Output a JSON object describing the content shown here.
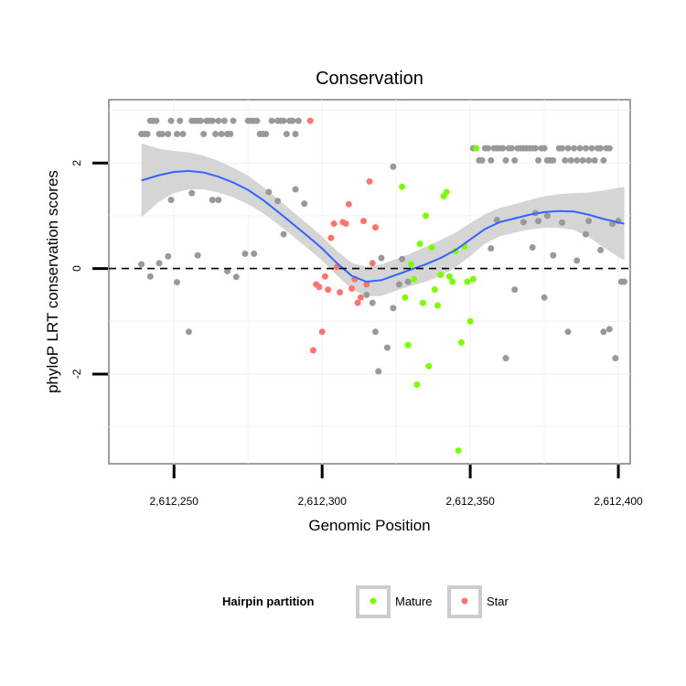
{
  "chart_data": {
    "type": "scatter",
    "title": "Conservation",
    "xlabel": "Genomic Position",
    "ylabel": "phyloP LRT conservation scores",
    "xlim": [
      2612228,
      2612404
    ],
    "ylim": [
      -3.7,
      3.2
    ],
    "x_ticks": [
      2612250,
      2612300,
      2612350,
      2612400
    ],
    "x_tick_labels": [
      "2,612,250",
      "2,612,300",
      "2,612,350",
      "2,612,400"
    ],
    "y_ticks": [
      -2,
      0,
      2
    ],
    "y_tick_labels": [
      "-2",
      "0",
      "2"
    ],
    "reference_line": {
      "y": 0,
      "style": "dashed"
    },
    "legend": {
      "title": "Hairpin partition",
      "position": "bottom",
      "entries": [
        {
          "label": "Mature",
          "color": "#7CFC00"
        },
        {
          "label": "Star",
          "color": "#F8766D"
        }
      ]
    },
    "colors": {
      "other": "#999999",
      "mature": "#7CFC00",
      "star": "#F8766D",
      "smooth_line": "#3366FF",
      "ribbon": "#D3D3D3"
    },
    "smooth": {
      "x": [
        2612239,
        2612245,
        2612250,
        2612255,
        2612260,
        2612265,
        2612270,
        2612275,
        2612280,
        2612285,
        2612290,
        2612295,
        2612300,
        2612305,
        2612310,
        2612315,
        2612320,
        2612325,
        2612330,
        2612335,
        2612340,
        2612345,
        2612350,
        2612355,
        2612360,
        2612365,
        2612370,
        2612375,
        2612380,
        2612385,
        2612390,
        2612395,
        2612402
      ],
      "y": [
        1.67,
        1.77,
        1.83,
        1.85,
        1.82,
        1.74,
        1.63,
        1.49,
        1.3,
        1.08,
        0.85,
        0.62,
        0.38,
        0.1,
        -0.14,
        -0.25,
        -0.22,
        -0.12,
        -0.02,
        0.08,
        0.2,
        0.35,
        0.55,
        0.75,
        0.88,
        0.95,
        1.02,
        1.07,
        1.09,
        1.08,
        1.02,
        0.94,
        0.85
      ],
      "lower": [
        0.97,
        1.27,
        1.43,
        1.5,
        1.5,
        1.44,
        1.35,
        1.22,
        1.05,
        0.84,
        0.62,
        0.39,
        0.15,
        -0.13,
        -0.39,
        -0.53,
        -0.52,
        -0.42,
        -0.33,
        -0.25,
        -0.14,
        0.02,
        0.24,
        0.47,
        0.61,
        0.68,
        0.74,
        0.77,
        0.77,
        0.73,
        0.6,
        0.4,
        0.15
      ],
      "upper": [
        2.37,
        2.27,
        2.23,
        2.2,
        2.14,
        2.04,
        1.91,
        1.76,
        1.55,
        1.32,
        1.08,
        0.85,
        0.61,
        0.33,
        0.11,
        0.03,
        0.08,
        0.18,
        0.29,
        0.41,
        0.54,
        0.68,
        0.86,
        1.03,
        1.15,
        1.22,
        1.3,
        1.37,
        1.41,
        1.43,
        1.44,
        1.48,
        1.55
      ]
    },
    "series": [
      {
        "name": "Other",
        "points": [
          [
            2612239,
            2.55
          ],
          [
            2612240,
            2.55
          ],
          [
            2612241,
            2.55
          ],
          [
            2612242,
            2.8
          ],
          [
            2612243,
            2.8
          ],
          [
            2612244,
            2.8
          ],
          [
            2612245,
            2.55
          ],
          [
            2612246,
            2.55
          ],
          [
            2612248,
            2.55
          ],
          [
            2612249,
            2.8
          ],
          [
            2612251,
            2.55
          ],
          [
            2612252,
            2.8
          ],
          [
            2612253,
            2.55
          ],
          [
            2612256,
            2.8
          ],
          [
            2612257,
            2.8
          ],
          [
            2612258,
            2.8
          ],
          [
            2612259,
            2.8
          ],
          [
            2612260,
            2.55
          ],
          [
            2612261,
            2.8
          ],
          [
            2612262,
            2.8
          ],
          [
            2612263,
            2.8
          ],
          [
            2612264,
            2.55
          ],
          [
            2612265,
            2.8
          ],
          [
            2612266,
            2.55
          ],
          [
            2612267,
            2.8
          ],
          [
            2612268,
            2.55
          ],
          [
            2612269,
            2.55
          ],
          [
            2612270,
            2.8
          ],
          [
            2612275,
            2.8
          ],
          [
            2612276,
            2.8
          ],
          [
            2612277,
            2.8
          ],
          [
            2612278,
            2.8
          ],
          [
            2612279,
            2.55
          ],
          [
            2612280,
            2.55
          ],
          [
            2612281,
            2.55
          ],
          [
            2612283,
            2.8
          ],
          [
            2612285,
            2.8
          ],
          [
            2612286,
            2.8
          ],
          [
            2612287,
            2.8
          ],
          [
            2612288,
            2.55
          ],
          [
            2612289,
            2.8
          ],
          [
            2612290,
            2.8
          ],
          [
            2612291,
            2.55
          ],
          [
            2612292,
            2.8
          ],
          [
            2612239,
            0.08
          ],
          [
            2612242,
            -0.15
          ],
          [
            2612245,
            0.1
          ],
          [
            2612248,
            0.23
          ],
          [
            2612249,
            1.3
          ],
          [
            2612251,
            -0.26
          ],
          [
            2612255,
            -1.2
          ],
          [
            2612256,
            1.43
          ],
          [
            2612258,
            0.25
          ],
          [
            2612263,
            1.3
          ],
          [
            2612265,
            1.3
          ],
          [
            2612268,
            -0.05
          ],
          [
            2612271,
            -0.16
          ],
          [
            2612274,
            0.28
          ],
          [
            2612277,
            0.28
          ],
          [
            2612282,
            1.45
          ],
          [
            2612285,
            1.28
          ],
          [
            2612287,
            0.65
          ],
          [
            2612291,
            1.5
          ],
          [
            2612294,
            1.23
          ],
          [
            2612315,
            -0.5
          ],
          [
            2612317,
            -0.65
          ],
          [
            2612318,
            -1.2
          ],
          [
            2612319,
            -1.95
          ],
          [
            2612320,
            0.2
          ],
          [
            2612322,
            -1.5
          ],
          [
            2612324,
            -0.75
          ],
          [
            2612324,
            1.93
          ],
          [
            2612326,
            -0.3
          ],
          [
            2612327,
            0.18
          ],
          [
            2612329,
            -0.25
          ],
          [
            2612351,
            2.28
          ],
          [
            2612352,
            2.28
          ],
          [
            2612353,
            2.05
          ],
          [
            2612354,
            2.05
          ],
          [
            2612355,
            2.28
          ],
          [
            2612356,
            2.28
          ],
          [
            2612357,
            2.05
          ],
          [
            2612358,
            2.28
          ],
          [
            2612359,
            2.28
          ],
          [
            2612360,
            2.28
          ],
          [
            2612361,
            2.28
          ],
          [
            2612362,
            2.05
          ],
          [
            2612363,
            2.28
          ],
          [
            2612364,
            2.28
          ],
          [
            2612365,
            2.05
          ],
          [
            2612366,
            2.28
          ],
          [
            2612367,
            2.28
          ],
          [
            2612368,
            2.28
          ],
          [
            2612369,
            2.28
          ],
          [
            2612370,
            2.28
          ],
          [
            2612371,
            2.28
          ],
          [
            2612372,
            2.28
          ],
          [
            2612373,
            2.05
          ],
          [
            2612374,
            2.28
          ],
          [
            2612375,
            2.28
          ],
          [
            2612376,
            2.05
          ],
          [
            2612377,
            2.05
          ],
          [
            2612378,
            2.05
          ],
          [
            2612380,
            2.28
          ],
          [
            2612381,
            2.28
          ],
          [
            2612382,
            2.05
          ],
          [
            2612383,
            2.28
          ],
          [
            2612384,
            2.05
          ],
          [
            2612385,
            2.28
          ],
          [
            2612386,
            2.05
          ],
          [
            2612387,
            2.28
          ],
          [
            2612388,
            2.05
          ],
          [
            2612389,
            2.28
          ],
          [
            2612390,
            2.05
          ],
          [
            2612391,
            2.28
          ],
          [
            2612392,
            2.05
          ],
          [
            2612393,
            2.28
          ],
          [
            2612394,
            2.28
          ],
          [
            2612395,
            2.05
          ],
          [
            2612396,
            2.28
          ],
          [
            2612397,
            2.28
          ],
          [
            2612357,
            0.38
          ],
          [
            2612359,
            0.92
          ],
          [
            2612362,
            -1.7
          ],
          [
            2612365,
            -0.4
          ],
          [
            2612368,
            0.88
          ],
          [
            2612371,
            0.4
          ],
          [
            2612372,
            1.05
          ],
          [
            2612373,
            0.9
          ],
          [
            2612375,
            -0.55
          ],
          [
            2612376,
            1.0
          ],
          [
            2612378,
            0.25
          ],
          [
            2612381,
            0.87
          ],
          [
            2612383,
            -1.2
          ],
          [
            2612386,
            0.15
          ],
          [
            2612389,
            0.65
          ],
          [
            2612390,
            0.9
          ],
          [
            2612394,
            0.35
          ],
          [
            2612395,
            -1.2
          ],
          [
            2612397,
            -1.15
          ],
          [
            2612398,
            0.85
          ],
          [
            2612399,
            -1.7
          ],
          [
            2612400,
            0.9
          ],
          [
            2612401,
            -0.25
          ],
          [
            2612402,
            -0.25
          ]
        ]
      },
      {
        "name": "Mature",
        "points": [
          [
            2612327,
            1.55
          ],
          [
            2612328,
            -0.55
          ],
          [
            2612329,
            -1.45
          ],
          [
            2612330,
            0.08
          ],
          [
            2612331,
            -0.2
          ],
          [
            2612332,
            -2.2
          ],
          [
            2612333,
            0.47
          ],
          [
            2612334,
            -0.65
          ],
          [
            2612335,
            1.0
          ],
          [
            2612336,
            -1.85
          ],
          [
            2612337,
            0.4
          ],
          [
            2612338,
            -0.4
          ],
          [
            2612339,
            -0.7
          ],
          [
            2612340,
            -0.12
          ],
          [
            2612341,
            1.37
          ],
          [
            2612342,
            1.45
          ],
          [
            2612343,
            -0.15
          ],
          [
            2612344,
            -0.25
          ],
          [
            2612345,
            0.33
          ],
          [
            2612346,
            -3.45
          ],
          [
            2612347,
            -1.4
          ],
          [
            2612348,
            0.42
          ],
          [
            2612349,
            -0.25
          ],
          [
            2612350,
            -1.0
          ],
          [
            2612351,
            -0.2
          ],
          [
            2612352,
            2.28
          ]
        ]
      },
      {
        "name": "Star",
        "points": [
          [
            2612296,
            2.8
          ],
          [
            2612297,
            -1.55
          ],
          [
            2612298,
            -0.3
          ],
          [
            2612299,
            -0.35
          ],
          [
            2612300,
            -1.2
          ],
          [
            2612301,
            -0.15
          ],
          [
            2612302,
            -0.4
          ],
          [
            2612303,
            0.58
          ],
          [
            2612304,
            0.85
          ],
          [
            2612305,
            0.03
          ],
          [
            2612306,
            -0.45
          ],
          [
            2612307,
            0.88
          ],
          [
            2612308,
            0.85
          ],
          [
            2612309,
            1.22
          ],
          [
            2612310,
            -0.38
          ],
          [
            2612311,
            -0.2
          ],
          [
            2612312,
            -0.65
          ],
          [
            2612313,
            -0.55
          ],
          [
            2612314,
            0.9
          ],
          [
            2612315,
            -0.3
          ],
          [
            2612316,
            1.65
          ],
          [
            2612317,
            0.1
          ],
          [
            2612318,
            0.78
          ]
        ]
      }
    ]
  }
}
